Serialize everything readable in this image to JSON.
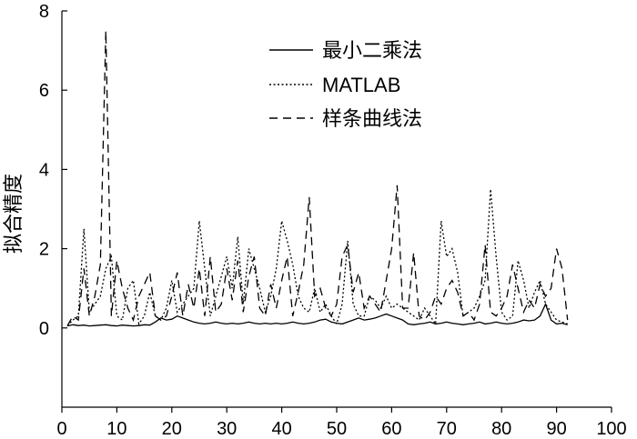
{
  "chart_data": {
    "type": "line",
    "title": "",
    "xlabel": "",
    "ylabel": "拟合精度",
    "xlim": [
      0,
      100
    ],
    "ylim": [
      -2,
      8
    ],
    "x_ticks": [
      0,
      10,
      20,
      30,
      40,
      50,
      60,
      70,
      80,
      90,
      100
    ],
    "y_ticks": [
      0,
      2,
      4,
      6,
      8
    ],
    "legend_position": "top",
    "x": [
      1,
      2,
      3,
      4,
      5,
      6,
      7,
      8,
      9,
      10,
      11,
      12,
      13,
      14,
      15,
      16,
      17,
      18,
      19,
      20,
      21,
      22,
      23,
      24,
      25,
      26,
      27,
      28,
      29,
      30,
      31,
      32,
      33,
      34,
      35,
      36,
      37,
      38,
      39,
      40,
      41,
      42,
      43,
      44,
      45,
      46,
      47,
      48,
      49,
      50,
      51,
      52,
      53,
      54,
      55,
      56,
      57,
      58,
      59,
      60,
      61,
      62,
      63,
      64,
      65,
      66,
      67,
      68,
      69,
      70,
      71,
      72,
      73,
      74,
      75,
      76,
      77,
      78,
      79,
      80,
      81,
      82,
      83,
      84,
      85,
      86,
      87,
      88,
      89,
      90,
      91,
      92
    ],
    "series": [
      {
        "name": "最小二乘法",
        "style": "solid",
        "values": [
          0.05,
          0.08,
          0.06,
          0.07,
          0.05,
          0.06,
          0.07,
          0.08,
          0.06,
          0.05,
          0.07,
          0.06,
          0.05,
          0.06,
          0.08,
          0.07,
          0.15,
          0.25,
          0.2,
          0.22,
          0.3,
          0.25,
          0.2,
          0.15,
          0.12,
          0.1,
          0.12,
          0.15,
          0.12,
          0.1,
          0.12,
          0.1,
          0.12,
          0.15,
          0.12,
          0.1,
          0.12,
          0.1,
          0.12,
          0.1,
          0.12,
          0.15,
          0.12,
          0.1,
          0.12,
          0.15,
          0.2,
          0.22,
          0.15,
          0.12,
          0.1,
          0.15,
          0.2,
          0.25,
          0.2,
          0.22,
          0.25,
          0.3,
          0.35,
          0.3,
          0.25,
          0.2,
          0.1,
          0.08,
          0.1,
          0.12,
          0.15,
          0.1,
          0.12,
          0.15,
          0.12,
          0.1,
          0.08,
          0.1,
          0.12,
          0.15,
          0.1,
          0.12,
          0.15,
          0.12,
          0.1,
          0.12,
          0.15,
          0.2,
          0.18,
          0.2,
          0.3,
          0.6,
          0.2,
          0.1,
          0.12,
          0.08
        ]
      },
      {
        "name": "MATLAB",
        "style": "dotted",
        "values": [
          0.05,
          0.2,
          0.3,
          2.5,
          0.4,
          0.6,
          0.8,
          1.5,
          1.8,
          0.3,
          0.2,
          1.0,
          1.2,
          0.1,
          0.3,
          0.9,
          0.3,
          0.2,
          0.5,
          1.2,
          0.4,
          0.6,
          0.8,
          1.0,
          2.7,
          1.5,
          0.3,
          0.8,
          1.3,
          1.8,
          1.0,
          2.3,
          0.6,
          2.0,
          1.5,
          1.0,
          0.4,
          0.8,
          1.5,
          2.7,
          2.2,
          1.6,
          0.8,
          0.5,
          0.4,
          1.0,
          0.4,
          0.6,
          0.3,
          0.1,
          0.6,
          2.2,
          0.6,
          0.3,
          0.3,
          0.8,
          0.7,
          0.5,
          0.8,
          0.5,
          0.6,
          0.5,
          0.4,
          0.3,
          0.2,
          0.5,
          0.3,
          0.1,
          2.7,
          1.8,
          2.0,
          1.4,
          0.3,
          0.4,
          0.5,
          0.8,
          1.2,
          3.5,
          1.8,
          0.4,
          0.2,
          0.3,
          1.7,
          1.2,
          0.5,
          0.9,
          1.2,
          0.6,
          0.4,
          0.2,
          0.15,
          0.1
        ]
      },
      {
        "name": "样条曲线法",
        "style": "dashed",
        "values": [
          0.05,
          0.3,
          0.2,
          1.5,
          0.3,
          0.8,
          1.6,
          7.5,
          0.3,
          1.7,
          1.0,
          0.5,
          0.2,
          0.8,
          1.1,
          1.4,
          0.3,
          0.2,
          0.3,
          0.8,
          1.4,
          0.3,
          1.1,
          0.5,
          1.5,
          0.3,
          1.8,
          0.4,
          0.6,
          1.5,
          0.7,
          1.7,
          0.4,
          1.3,
          1.8,
          0.5,
          0.3,
          1.1,
          0.5,
          1.2,
          1.8,
          0.3,
          0.9,
          1.6,
          3.3,
          0.8,
          1.0,
          0.5,
          0.3,
          0.6,
          1.8,
          2.1,
          0.9,
          1.4,
          0.5,
          0.8,
          0.6,
          0.4,
          1.2,
          2.0,
          3.6,
          0.5,
          0.5,
          1.9,
          0.3,
          0.2,
          0.4,
          0.8,
          0.6,
          1.0,
          1.2,
          0.9,
          0.3,
          0.4,
          0.2,
          0.6,
          2.1,
          0.4,
          0.3,
          0.5,
          0.8,
          1.6,
          1.0,
          0.4,
          0.7,
          0.5,
          1.1,
          0.8,
          1.0,
          2.0,
          1.5,
          0.2
        ]
      }
    ]
  }
}
